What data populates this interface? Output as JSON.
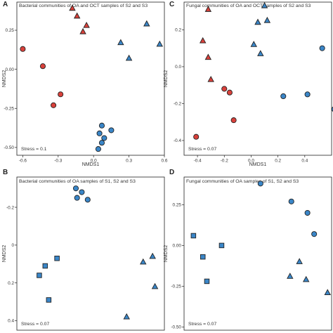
{
  "colors": {
    "red": "#d9413b",
    "blue": "#3a86c8",
    "stroke": "#222222"
  },
  "chart_data": [
    {
      "type": "scatter",
      "panel": "A",
      "title": "Bacterial communities of OA and OCT samples of S2 and S3",
      "xlabel": "NMDS1",
      "ylabel": "NMDS2",
      "xlim": [
        -0.65,
        0.6
      ],
      "ylim": [
        -0.55,
        0.43
      ],
      "x_ticks": [
        "-0.6",
        "-0.3",
        "0.0",
        "0.3",
        "0.6"
      ],
      "x_tick_values": [
        -0.6,
        -0.3,
        0.0,
        0.3,
        0.6
      ],
      "y_ticks": [
        "0.25",
        "0.00",
        "-0.25",
        "-0.50"
      ],
      "y_tick_values": [
        0.25,
        0.0,
        -0.25,
        -0.5
      ],
      "stress": "Stress = 0.1",
      "series": [
        {
          "color": "red",
          "marker": "triangle",
          "points": [
            [
              -0.18,
              0.39
            ],
            [
              -0.14,
              0.34
            ],
            [
              -0.09,
              0.24
            ],
            [
              -0.06,
              0.28
            ]
          ]
        },
        {
          "color": "red",
          "marker": "circle",
          "points": [
            [
              -0.6,
              0.13
            ],
            [
              -0.43,
              0.02
            ],
            [
              -0.28,
              -0.16
            ],
            [
              -0.34,
              -0.23
            ]
          ]
        },
        {
          "color": "blue",
          "marker": "triangle",
          "points": [
            [
              0.23,
              0.17
            ],
            [
              0.45,
              0.29
            ],
            [
              0.56,
              0.16
            ],
            [
              0.3,
              0.07
            ]
          ]
        },
        {
          "color": "blue",
          "marker": "circle",
          "points": [
            [
              0.07,
              -0.36
            ],
            [
              0.05,
              -0.41
            ],
            [
              0.15,
              -0.39
            ],
            [
              0.09,
              -0.44
            ],
            [
              0.07,
              -0.47
            ],
            [
              0.04,
              -0.51
            ]
          ]
        }
      ]
    },
    {
      "type": "scatter",
      "panel": "C",
      "title": "Fungal communities of OA and OCT samples of S2 and S3",
      "xlabel": "NMDS1",
      "ylabel": "NMDS2",
      "xlim": [
        -0.5,
        0.6
      ],
      "ylim": [
        -0.48,
        0.35
      ],
      "x_ticks": [
        "-0.4",
        "-0.2",
        "0.0",
        "0.2",
        "0.4"
      ],
      "x_tick_values": [
        -0.4,
        -0.2,
        0.0,
        0.2,
        0.4
      ],
      "y_ticks": [
        "0.2",
        "0.0",
        "-0.2",
        "-0.4"
      ],
      "y_tick_values": [
        0.2,
        0.0,
        -0.2,
        -0.4
      ],
      "stress": "Stress = 0.07",
      "series": [
        {
          "color": "red",
          "marker": "triangle",
          "points": [
            [
              -0.32,
              0.31
            ],
            [
              -0.36,
              0.14
            ],
            [
              -0.32,
              0.05
            ],
            [
              -0.3,
              -0.07
            ]
          ]
        },
        {
          "color": "red",
          "marker": "circle",
          "points": [
            [
              -0.2,
              -0.12
            ],
            [
              -0.16,
              -0.14
            ],
            [
              -0.13,
              -0.29
            ],
            [
              -0.41,
              -0.38
            ]
          ]
        },
        {
          "color": "blue",
          "marker": "triangle",
          "points": [
            [
              0.1,
              0.33
            ],
            [
              0.05,
              0.24
            ],
            [
              0.12,
              0.25
            ],
            [
              0.02,
              0.12
            ],
            [
              0.07,
              0.07
            ]
          ]
        },
        {
          "color": "blue",
          "marker": "circle",
          "points": [
            [
              0.53,
              0.1
            ],
            [
              0.24,
              -0.16
            ],
            [
              0.42,
              -0.15
            ],
            [
              0.62,
              -0.23
            ]
          ]
        }
      ]
    },
    {
      "type": "scatter",
      "panel": "B",
      "title": "Bacterial communities of OA samples of S1, S2 and S3",
      "xlabel": "",
      "ylabel": "NMDS2",
      "xlim": [
        -0.65,
        0.6
      ],
      "ylim": [
        0.45,
        -0.36
      ],
      "x_ticks": [],
      "x_tick_values": [],
      "y_ticks": [
        "-0.2",
        "0",
        "0.2",
        "0.4"
      ],
      "y_tick_values": [
        -0.2,
        0.0,
        0.2,
        0.4
      ],
      "stress": "Stress = 0.07",
      "series": [
        {
          "color": "blue",
          "marker": "square",
          "points": [
            [
              -0.31,
              0.07
            ],
            [
              -0.41,
              0.11
            ],
            [
              -0.46,
              0.16
            ],
            [
              -0.38,
              0.29
            ]
          ]
        },
        {
          "color": "blue",
          "marker": "circle",
          "points": [
            [
              -0.15,
              -0.3
            ],
            [
              -0.1,
              -0.28
            ],
            [
              -0.14,
              -0.25
            ],
            [
              -0.05,
              -0.24
            ]
          ]
        },
        {
          "color": "blue",
          "marker": "triangle",
          "points": [
            [
              0.5,
              0.06
            ],
            [
              0.42,
              0.09
            ],
            [
              0.52,
              0.22
            ],
            [
              0.28,
              0.38
            ]
          ]
        }
      ]
    },
    {
      "type": "scatter",
      "panel": "D",
      "title": "Fungal communities of OA samples of S1, S2 and S3",
      "xlabel": "",
      "ylabel": "NMDS2",
      "xlim": [
        -0.5,
        0.6
      ],
      "ylim": [
        -0.52,
        0.42
      ],
      "x_ticks": [],
      "x_tick_values": [],
      "y_ticks": [
        "0.25",
        "0.00",
        "-0.25",
        "-0.50"
      ],
      "y_tick_values": [
        0.25,
        0.0,
        -0.25,
        -0.5
      ],
      "stress": "Stress = 0.07",
      "series": [
        {
          "color": "blue",
          "marker": "square",
          "points": [
            [
              -0.43,
              0.06
            ],
            [
              -0.36,
              -0.07
            ],
            [
              -0.22,
              0.0
            ],
            [
              -0.33,
              -0.22
            ]
          ]
        },
        {
          "color": "blue",
          "marker": "circle",
          "points": [
            [
              0.07,
              0.38
            ],
            [
              0.3,
              0.27
            ],
            [
              0.42,
              0.2
            ],
            [
              0.47,
              0.07
            ]
          ]
        },
        {
          "color": "blue",
          "marker": "triangle",
          "points": [
            [
              0.36,
              -0.1
            ],
            [
              0.29,
              -0.19
            ],
            [
              0.41,
              -0.21
            ],
            [
              0.57,
              -0.29
            ]
          ]
        }
      ]
    }
  ]
}
